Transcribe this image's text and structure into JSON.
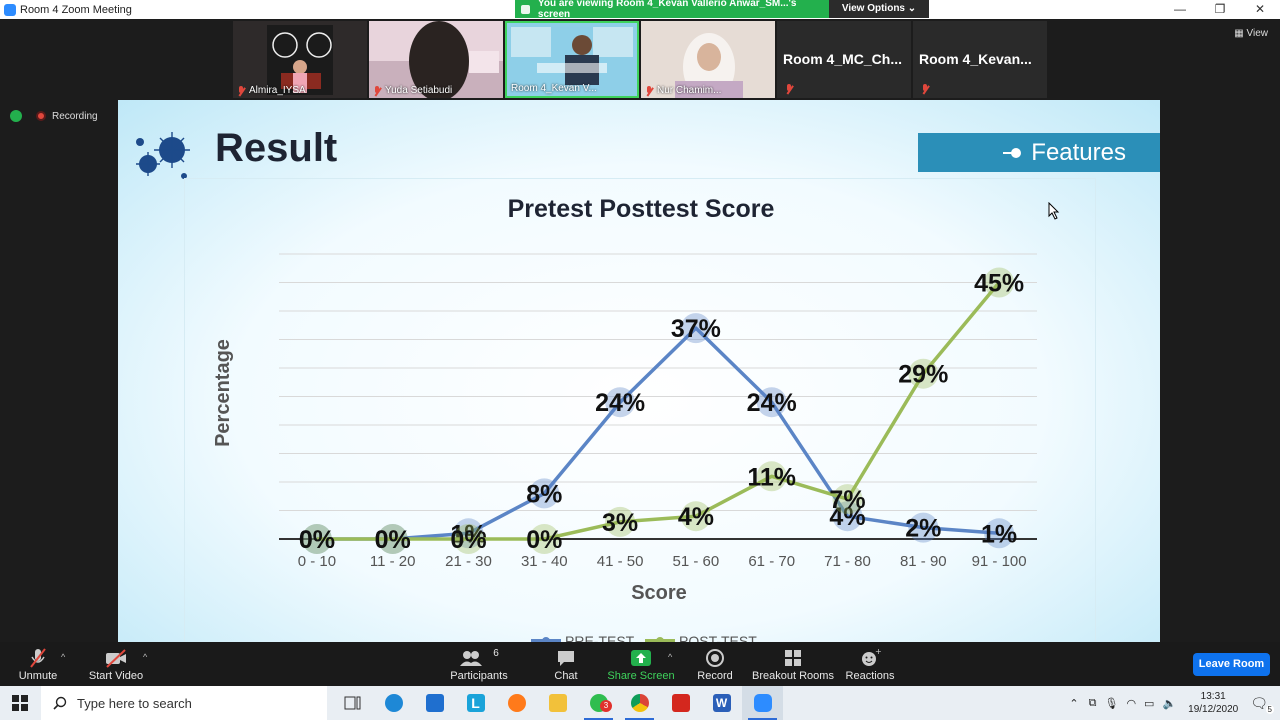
{
  "window": {
    "title": "Room 4   Zoom Meeting",
    "share_banner": "You are viewing Room 4_Kevan Vallerio Anwar_SM...'s screen",
    "view_options": "View Options ⌄"
  },
  "gallery": {
    "participants": [
      {
        "name": "Almira_IYSA",
        "type": "video"
      },
      {
        "name": "Yuda Setiabudi",
        "type": "video"
      },
      {
        "name": "Room 4_Kevan V...",
        "type": "video",
        "active": true
      },
      {
        "name": "Nur Chamim...",
        "type": "video"
      },
      {
        "name": "Room 4_MC_Ch...",
        "type": "name-only"
      },
      {
        "name": "Room 4_Kevan...",
        "type": "name-only"
      }
    ],
    "view_label": "View"
  },
  "status": {
    "recording_label": "Recording"
  },
  "slide": {
    "title": "Result",
    "features_label": "Features",
    "colors": {
      "title_bar": "#2b8fb8",
      "pre": "#5b85c6",
      "post": "#9bbb59"
    }
  },
  "chart_data": {
    "type": "line",
    "title": "Pretest Posttest Score",
    "xlabel": "Score",
    "ylabel": "Percentage",
    "categories": [
      "0 - 10",
      "11 - 20",
      "21 - 30",
      "31 - 40",
      "41 - 50",
      "51 - 60",
      "61 - 70",
      "71 - 80",
      "81 - 90",
      "91 - 100"
    ],
    "series": [
      {
        "name": "PRE-TEST",
        "values": [
          0,
          0,
          1,
          8,
          24,
          37,
          24,
          4,
          2,
          1
        ],
        "labels": [
          "0%",
          "0%",
          "1%",
          "8%",
          "24%",
          "37%",
          "24%",
          "4%",
          "2%",
          "1%"
        ]
      },
      {
        "name": "POST-TEST",
        "values": [
          0,
          0,
          0,
          0,
          3,
          4,
          11,
          7,
          29,
          45
        ],
        "labels": [
          "0%",
          "0%",
          "0%",
          "0%",
          "3%",
          "4%",
          "11%",
          "7%",
          "29%",
          "45%"
        ]
      }
    ],
    "ylim": [
      0,
      50
    ],
    "grid": true,
    "legend": "bottom"
  },
  "toolbar": {
    "unmute": "Unmute",
    "start_video": "Start Video",
    "participants": "Participants",
    "participants_count": "6",
    "chat": "Chat",
    "share_screen": "Share Screen",
    "record": "Record",
    "breakout_rooms": "Breakout Rooms",
    "reactions": "Reactions",
    "leave_room": "Leave Room"
  },
  "taskbar": {
    "search_placeholder": "Type here to search",
    "whatsapp_badge": "3",
    "time": "13:31",
    "date": "19/12/2020",
    "notification_count": "5"
  }
}
